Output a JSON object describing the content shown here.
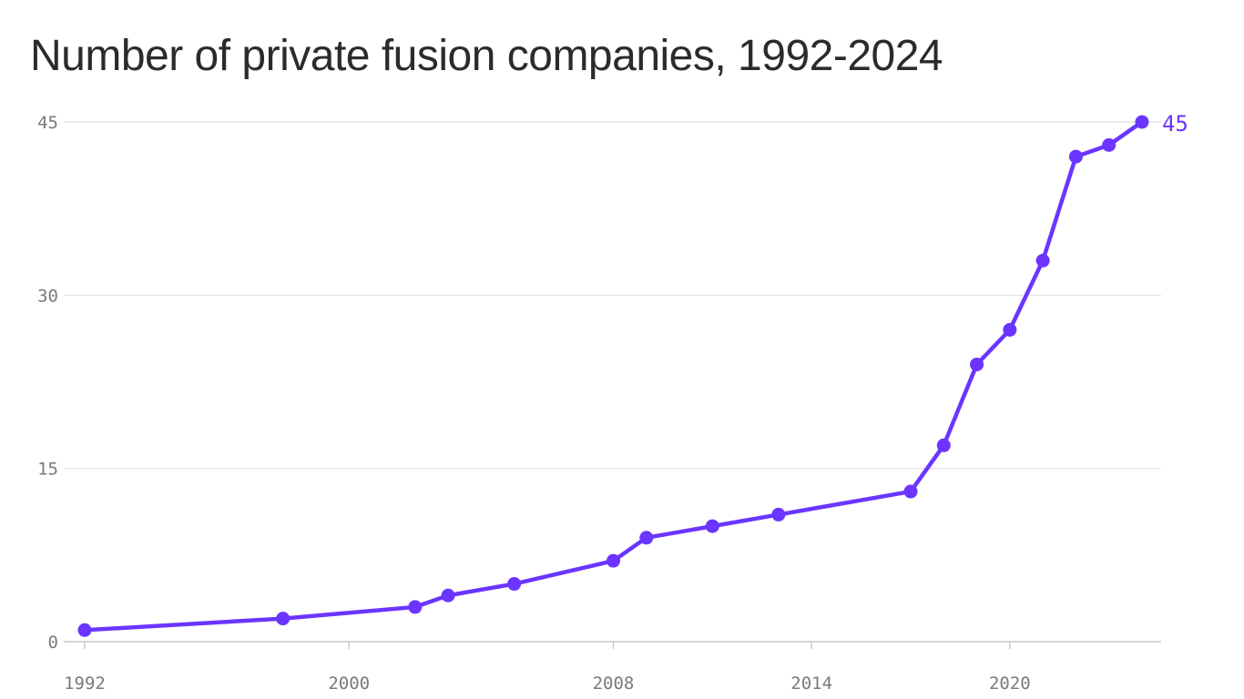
{
  "chart_data": {
    "type": "line",
    "title": "Number of private fusion companies, 1992-2024",
    "x": [
      1992,
      1998,
      2002,
      2003,
      2005,
      2008,
      2009,
      2011,
      2013,
      2017,
      2018,
      2019,
      2020,
      2021,
      2022,
      2023,
      2024
    ],
    "series": [
      {
        "values": [
          1,
          2,
          3,
          4,
          5,
          7,
          9,
          10,
          11,
          13,
          17,
          24,
          27,
          33,
          42,
          43,
          45
        ]
      }
    ],
    "xlim": [
      1992,
      2024.5
    ],
    "ylim": [
      0,
      45
    ],
    "x_ticks": [
      1992,
      2000,
      2008,
      2014,
      2020
    ],
    "y_ticks": [
      0,
      15,
      30,
      45
    ],
    "end_label": "45",
    "grid": "horizontal",
    "color": "#6b35ff"
  }
}
